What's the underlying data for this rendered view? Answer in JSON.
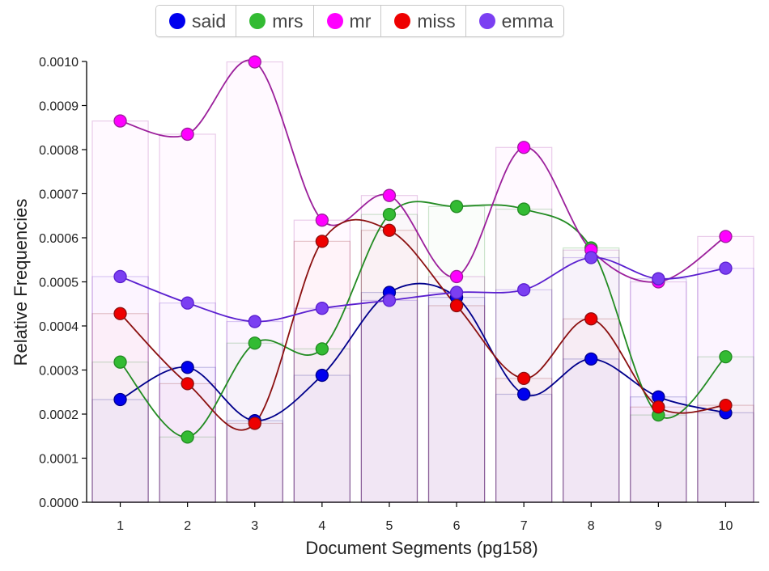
{
  "chart_data": {
    "type": "line",
    "xlabel": "Document Segments (pg158)",
    "ylabel": "Relative Frequencies",
    "categories": [
      "1",
      "2",
      "3",
      "4",
      "5",
      "6",
      "7",
      "8",
      "9",
      "10"
    ],
    "ylim": [
      0,
      0.001
    ],
    "yticks": [
      "0.0000",
      "0.0001",
      "0.0002",
      "0.0003",
      "0.0004",
      "0.0005",
      "0.0006",
      "0.0007",
      "0.0008",
      "0.0009",
      "0.0010"
    ],
    "grid": false,
    "legend_position": "top",
    "series": [
      {
        "name": "said",
        "color": "#0000ee",
        "stroke": "#00008b",
        "values": [
          0.000233,
          0.000306,
          0.000185,
          0.000288,
          0.000476,
          0.000465,
          0.000245,
          0.000325,
          0.000239,
          0.000203
        ]
      },
      {
        "name": "mrs",
        "color": "#33bb33",
        "stroke": "#228b22",
        "values": [
          0.000318,
          0.000148,
          0.000361,
          0.000348,
          0.000653,
          0.000671,
          0.000665,
          0.000577,
          0.000198,
          0.00033
        ]
      },
      {
        "name": "mr",
        "color": "#ff00ff",
        "stroke": "#9b1f9b",
        "values": [
          0.000865,
          0.000835,
          0.000999,
          0.00064,
          0.000696,
          0.000512,
          0.000805,
          0.000572,
          0.0005,
          0.000603
        ]
      },
      {
        "name": "miss",
        "color": "#ee0000",
        "stroke": "#8b1010",
        "values": [
          0.000428,
          0.000269,
          0.000179,
          0.000592,
          0.000617,
          0.000446,
          0.000281,
          0.000416,
          0.000216,
          0.00022
        ]
      },
      {
        "name": "emma",
        "color": "#7b3ff2",
        "stroke": "#5a1fcf",
        "values": [
          0.000512,
          0.000452,
          0.00041,
          0.00044,
          0.000458,
          0.000476,
          0.000482,
          0.000555,
          0.000507,
          0.000531
        ]
      }
    ]
  }
}
